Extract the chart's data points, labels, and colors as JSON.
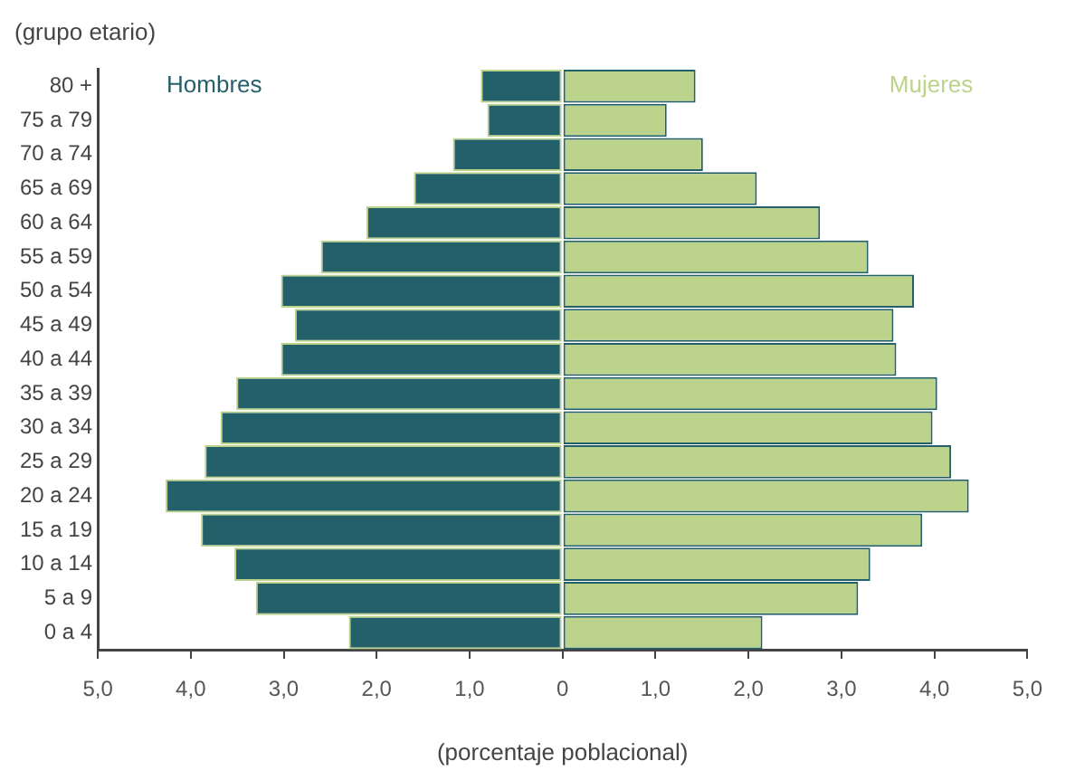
{
  "chart_data": {
    "type": "bar",
    "orientation": "horizontal",
    "stacked": true,
    "xlabel": "(porcentaje poblacional)",
    "ylabel": "(grupo etario)",
    "categories": [
      "80 +",
      "75 a 79",
      "70 a 74",
      "65 a 69",
      "60 a 64",
      "55 a 59",
      "50 a 54",
      "45 a 49",
      "40 a 44",
      "35 a 39",
      "30 a 34",
      "25 a 29",
      "20 a 24",
      "15 a 19",
      "10 a 14",
      "5 a 9",
      "0 a 4"
    ],
    "series": [
      {
        "name": "Hombres",
        "color": "#24606a",
        "values": [
          -0.88,
          -0.81,
          -1.18,
          -1.6,
          -2.11,
          -2.6,
          -3.03,
          -2.88,
          -3.03,
          -3.51,
          -3.68,
          -3.85,
          -4.27,
          -3.89,
          -3.53,
          -3.3,
          -2.3
        ]
      },
      {
        "name": "Mujeres",
        "color": "#bcd38b",
        "values": [
          1.43,
          1.12,
          1.51,
          2.09,
          2.77,
          3.29,
          3.78,
          3.56,
          3.59,
          4.03,
          3.98,
          4.18,
          4.37,
          3.87,
          3.31,
          3.18,
          2.15
        ]
      }
    ],
    "xlim": [
      -5,
      5
    ],
    "xticks": [
      {
        "value": -5,
        "label": "5,0"
      },
      {
        "value": -4,
        "label": "4,0"
      },
      {
        "value": -3,
        "label": "3,0"
      },
      {
        "value": -2,
        "label": "2,0"
      },
      {
        "value": -1,
        "label": "1,0"
      },
      0,
      {
        "value": 1,
        "label": "1,0"
      },
      {
        "value": 2,
        "label": "2,0"
      },
      {
        "value": 3,
        "label": "3,0"
      },
      {
        "value": 4,
        "label": "4,0"
      },
      {
        "value": 5,
        "label": "5,0"
      }
    ],
    "grid": false,
    "legend": false
  }
}
